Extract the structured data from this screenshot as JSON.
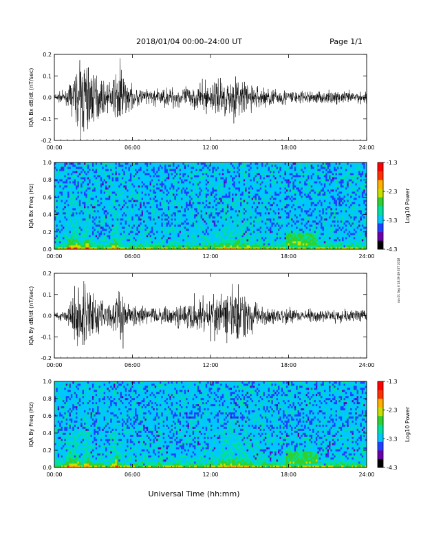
{
  "header": {
    "title": "2018/01/04  00:00–24:00 UT",
    "page": "Page 1/1"
  },
  "xaxis": {
    "label": "Universal Time (hh:mm)",
    "ticks": [
      "00:00",
      "06:00",
      "12:00",
      "18:00",
      "24:00"
    ]
  },
  "side_stamp": "run 01 Sep 6 18:39:49 EST 2018",
  "colorbar": {
    "label": "Log10 Power",
    "ticks": [
      "-1.3",
      "-2.3",
      "-3.3",
      "-4.3"
    ],
    "colors": [
      "#000000",
      "#6a00a8",
      "#2040ff",
      "#00c8ff",
      "#00e0a0",
      "#30d030",
      "#c8e000",
      "#ffb000",
      "#ff3000",
      "#ff0000"
    ]
  },
  "chart_data": [
    {
      "type": "line",
      "ylabel": "IQA Bx dB/dt (nT/sec)",
      "xlim": [
        0,
        24
      ],
      "ylim": [
        -0.2,
        0.2
      ],
      "yticks": [
        "0.2",
        "0.1",
        "0.0",
        "-0.1",
        "-0.2"
      ],
      "amplitude_envelope": {
        "x_hours": [
          0,
          1,
          1.5,
          2,
          2.3,
          2.6,
          3,
          4,
          4.7,
          5,
          5.5,
          6,
          7,
          8,
          9,
          10,
          11,
          12,
          13,
          14,
          14.5,
          15,
          16,
          17,
          18,
          19,
          20,
          21,
          22,
          23,
          24
        ],
        "peak_abs": [
          0.02,
          0.03,
          0.1,
          0.17,
          0.2,
          0.2,
          0.12,
          0.06,
          0.1,
          0.2,
          0.08,
          0.05,
          0.04,
          0.04,
          0.05,
          0.05,
          0.06,
          0.08,
          0.09,
          0.1,
          0.09,
          0.07,
          0.05,
          0.04,
          0.04,
          0.03,
          0.03,
          0.03,
          0.03,
          0.03,
          0.03
        ]
      }
    },
    {
      "type": "heatmap",
      "ylabel": "IQA Bx Freq (Hz)",
      "xlim": [
        0,
        24
      ],
      "ylim": [
        0,
        1.0
      ],
      "yticks": [
        "1.0",
        "0.8",
        "0.6",
        "0.4",
        "0.2",
        "0.0"
      ],
      "zlim": [
        -4.3,
        -1.3
      ]
    },
    {
      "type": "line",
      "ylabel": "IQA By dB/dt (nT/sec)",
      "xlim": [
        0,
        24
      ],
      "ylim": [
        -0.2,
        0.2
      ],
      "yticks": [
        "0.2",
        "0.1",
        "0.0",
        "-0.1",
        "-0.2"
      ],
      "amplitude_envelope": {
        "x_hours": [
          0,
          1,
          1.5,
          1.7,
          2,
          2.3,
          2.6,
          3,
          4,
          4.7,
          5,
          5.5,
          6,
          7,
          8,
          9,
          10,
          11,
          12,
          13,
          14,
          14.5,
          15,
          16,
          17,
          18,
          19,
          20,
          21,
          22,
          23,
          24
        ],
        "peak_abs": [
          0.02,
          0.03,
          0.15,
          0.2,
          0.1,
          0.2,
          0.2,
          0.12,
          0.06,
          0.1,
          0.2,
          0.08,
          0.05,
          0.04,
          0.04,
          0.05,
          0.06,
          0.08,
          0.1,
          0.13,
          0.15,
          0.14,
          0.08,
          0.05,
          0.04,
          0.04,
          0.03,
          0.03,
          0.03,
          0.03,
          0.03,
          0.03
        ]
      }
    },
    {
      "type": "heatmap",
      "ylabel": "IQA By Freq (Hz)",
      "xlim": [
        0,
        24
      ],
      "ylim": [
        0,
        1.0
      ],
      "yticks": [
        "1.0",
        "0.8",
        "0.6",
        "0.4",
        "0.2",
        "0.0"
      ],
      "zlim": [
        -4.3,
        -1.3
      ]
    }
  ]
}
